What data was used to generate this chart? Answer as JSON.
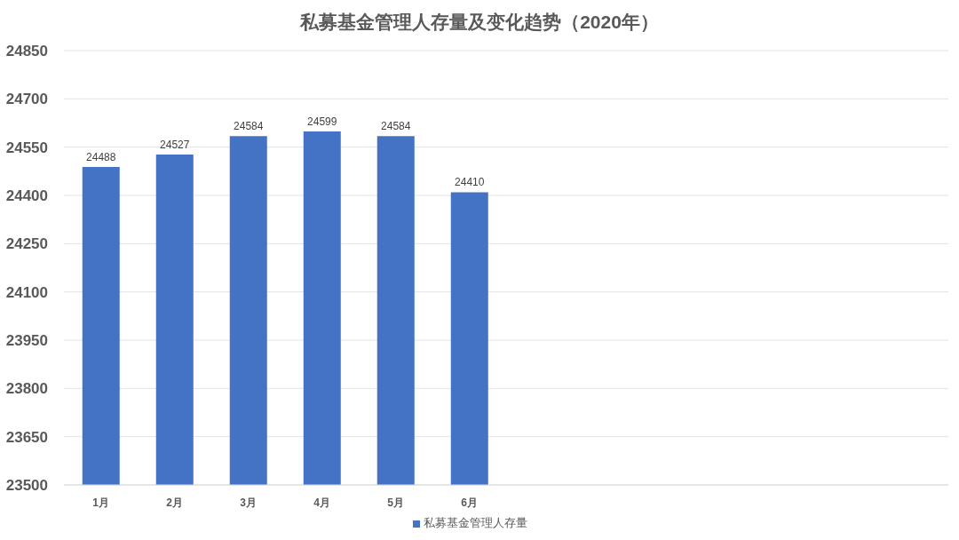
{
  "chart_data": {
    "type": "bar",
    "title": "私募基金管理人存量及变化趋势（2020年）",
    "categories": [
      "1月",
      "2月",
      "3月",
      "4月",
      "5月",
      "6月",
      null,
      null,
      null,
      null,
      null,
      null
    ],
    "series": [
      {
        "name": "私募基金管理人存量",
        "color": "#4472c4",
        "values": [
          24488,
          24527,
          24584,
          24599,
          24584,
          24410,
          null,
          null,
          null,
          null,
          null,
          null
        ]
      }
    ],
    "ylim": [
      23500,
      24850
    ],
    "yticks": [
      23500,
      23650,
      23800,
      23950,
      24100,
      24250,
      24400,
      24550,
      24700,
      24850
    ],
    "grid": "y",
    "legend": "bottom",
    "data_labels": true
  }
}
